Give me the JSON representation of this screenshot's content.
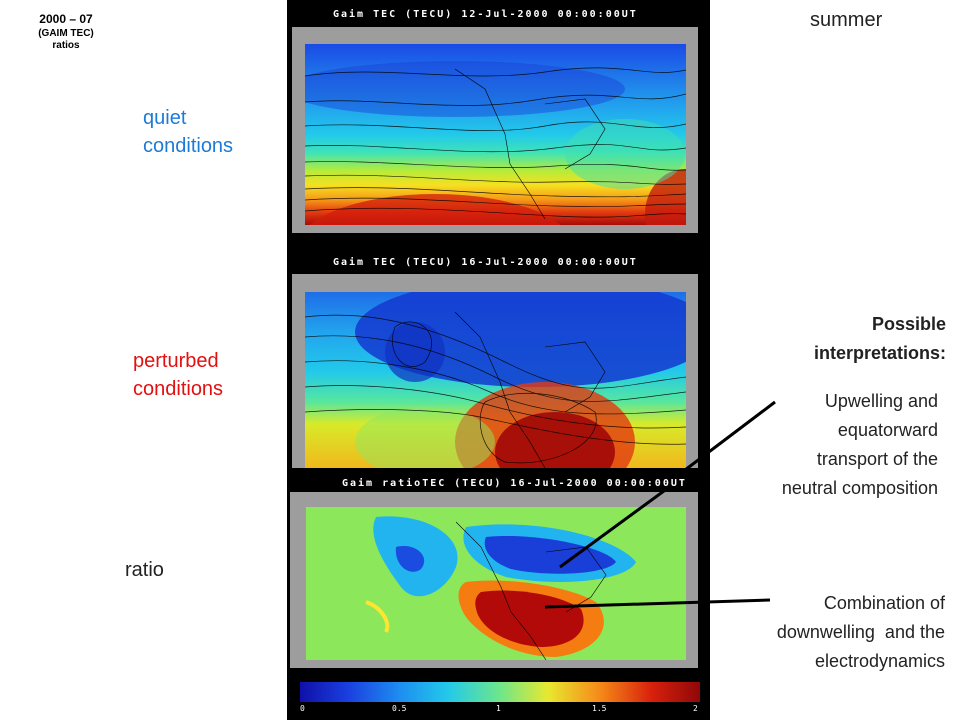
{
  "header": {
    "line1": "2000 – 07",
    "line2": "(GAIM TEC)",
    "line3": "ratios"
  },
  "labels": {
    "quiet_line1": "quiet",
    "quiet_line2": "conditions",
    "perturbed_line1": "perturbed",
    "perturbed_line2": "conditions",
    "ratio": "ratio",
    "season": "summer"
  },
  "panels": [
    {
      "title": "Gaim TEC (TECU) 12-Jul-2000 00:00:00UT"
    },
    {
      "title": "Gaim TEC (TECU) 16-Jul-2000 00:00:00UT"
    },
    {
      "title": "Gaim ratioTEC (TECU) 16-Jul-2000 00:00:00UT"
    }
  ],
  "colorbar": {
    "ticks": [
      "0",
      "0.5",
      "1",
      "1.5",
      "2"
    ]
  },
  "interpretations": {
    "heading_line1": "Possible",
    "heading_line2": "interpretations:",
    "upwelling": [
      "Upwelling and",
      "equatorward",
      "transport of the",
      "neutral composition"
    ],
    "downwelling": [
      "Combination of",
      "downwelling  and the",
      "electrodynamics"
    ]
  },
  "colors": {
    "quiet_label": "#1d7bd8",
    "perturbed_label": "#e21010"
  }
}
